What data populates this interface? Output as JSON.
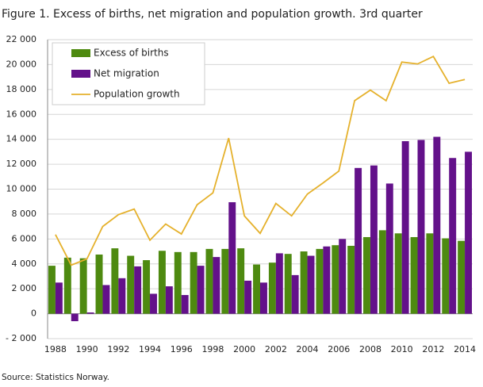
{
  "chart_data": {
    "type": "bar",
    "title": "Figure 1. Excess of births, net migration and population growth. 3rd quarter",
    "source": "Source: Statistics Norway.",
    "categories": [
      "1988",
      null,
      "1990",
      null,
      "1992",
      null,
      "1994",
      null,
      "1996",
      null,
      "1998",
      null,
      "2000",
      null,
      "2002",
      null,
      "2004",
      null,
      "2006",
      null,
      "2008",
      null,
      "2010",
      null,
      "2012",
      null,
      "2014"
    ],
    "series": [
      {
        "name": "Excess of births",
        "type": "bar",
        "color": "#4e8a10",
        "values": [
          3850,
          4500,
          4450,
          4750,
          5250,
          4650,
          4300,
          5050,
          4950,
          4950,
          5200,
          5200,
          5250,
          3950,
          4100,
          4800,
          5000,
          5200,
          5500,
          5450,
          6150,
          6700,
          6450,
          6150,
          6450,
          6050,
          5850
        ]
      },
      {
        "name": "Net migration",
        "type": "bar",
        "color": "#63118a",
        "values": [
          2500,
          -600,
          100,
          2300,
          2850,
          3800,
          1600,
          2200,
          1500,
          3850,
          4550,
          8950,
          2650,
          2500,
          4850,
          3100,
          4650,
          5400,
          6000,
          11700,
          11900,
          10450,
          13850,
          13950,
          14200,
          12500,
          13000
        ]
      },
      {
        "name": "Population growth",
        "type": "line",
        "color": "#e5b12c",
        "values": [
          6350,
          3900,
          4400,
          7000,
          7950,
          8400,
          5900,
          7200,
          6400,
          8750,
          9700,
          14100,
          7850,
          6450,
          8850,
          7850,
          9600,
          10500,
          11450,
          17100,
          17950,
          17100,
          20200,
          20050,
          20650,
          18500,
          18800
        ]
      }
    ],
    "ylim": [
      -2000,
      22000
    ],
    "yticks": [
      {
        "value": -2000,
        "label": "- 2 000"
      },
      0,
      {
        "value": 2000,
        "label": "2 000"
      },
      {
        "value": 4000,
        "label": "4 000"
      },
      {
        "value": 6000,
        "label": "6 000"
      },
      {
        "value": 8000,
        "label": "8 000"
      },
      {
        "value": 10000,
        "label": "10 000"
      },
      {
        "value": 12000,
        "label": "12 000"
      },
      {
        "value": 14000,
        "label": "14 000"
      },
      {
        "value": 16000,
        "label": "16 000"
      },
      {
        "value": 18000,
        "label": "18 000"
      },
      {
        "value": 20000,
        "label": "20 000"
      },
      {
        "value": 22000,
        "label": "22 000"
      }
    ],
    "grid": true,
    "legend": "top-left"
  }
}
